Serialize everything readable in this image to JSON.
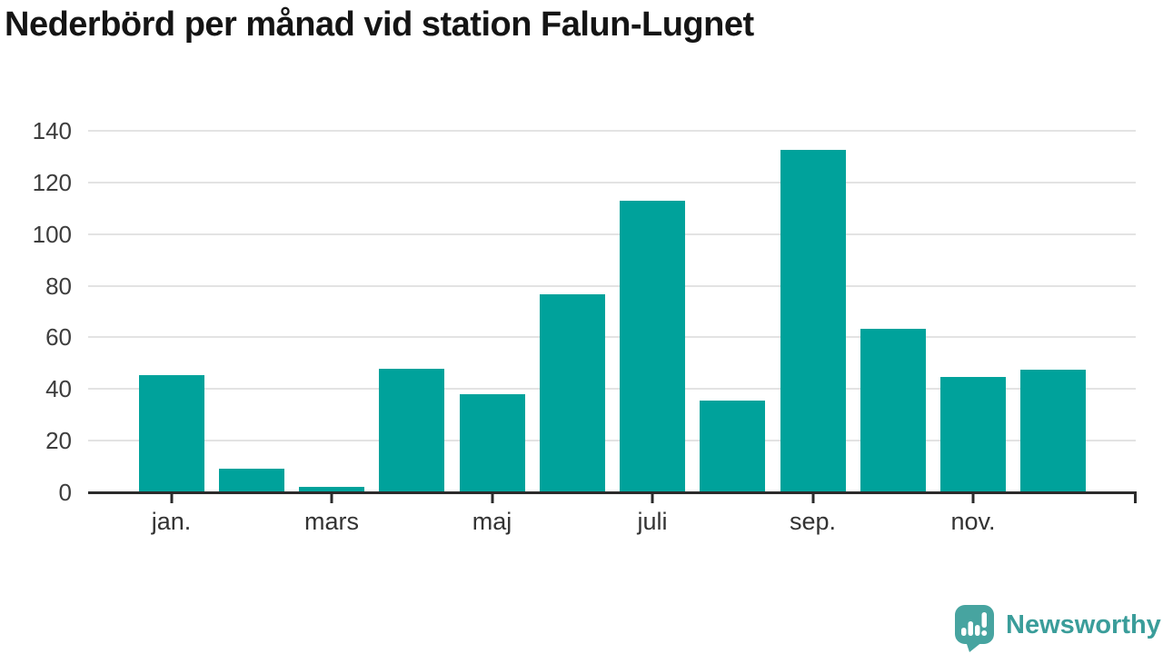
{
  "title": "Nederbörd per månad vid station Falun-Lugnet",
  "chart_data": {
    "type": "bar",
    "title": "Nederbörd per månad vid station Falun-Lugnet",
    "values": [
      45.4,
      9.1,
      2.1,
      47.8,
      38.0,
      76.7,
      113.1,
      35.5,
      132.6,
      63.3,
      44.7,
      47.5
    ],
    "x_tick_labels": [
      "jan.",
      "mars",
      "maj",
      "juli",
      "sep.",
      "nov."
    ],
    "x_tick_bar_indices": [
      0,
      2,
      4,
      6,
      8,
      10
    ],
    "y_ticks": [
      0,
      20,
      40,
      60,
      80,
      100,
      120,
      140
    ],
    "ylim": [
      0,
      140
    ],
    "xlabel": "",
    "ylabel": "",
    "grid": true,
    "legend": false,
    "bar_color": "#00a29b",
    "gridline_color": "#e3e3e3",
    "axis_color": "#2b2b2b",
    "tick_label_color": "#3d3d3d"
  },
  "branding": {
    "logo_text": "Newsworthy",
    "logo_text_color": "#3a9d9a",
    "icon_color": "#47a4a0",
    "icon_glyph_color": "#ffffff"
  }
}
